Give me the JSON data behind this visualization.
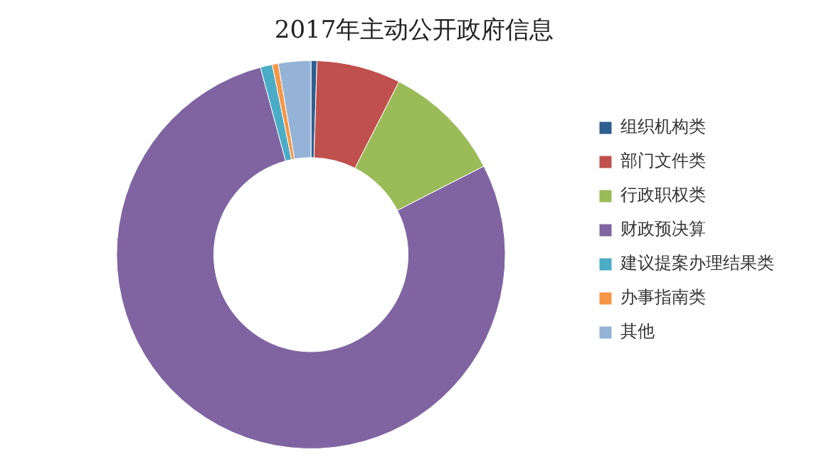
{
  "chart_data": {
    "type": "donut",
    "title": "2017年主动公开政府信息",
    "categories": [
      "组织机构类",
      "部门文件类",
      "行政职权类",
      "财政预决算",
      "建议提案办理结果类",
      "办事指南类",
      "其他"
    ],
    "values": [
      0.5,
      7,
      10,
      78.5,
      1,
      0.5,
      2.7
    ],
    "colors": [
      "#2f5f8f",
      "#c0504d",
      "#9bbb59",
      "#8064a2",
      "#4bacc6",
      "#f79646",
      "#95b3d7"
    ],
    "legend": "right"
  }
}
